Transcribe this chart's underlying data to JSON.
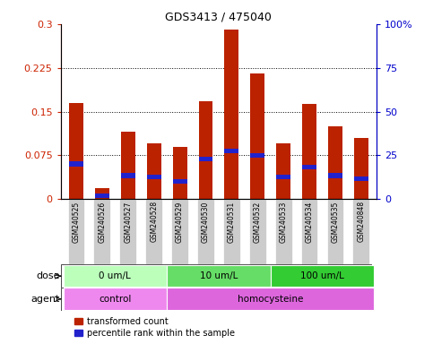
{
  "title": "GDS3413 / 475040",
  "samples": [
    "GSM240525",
    "GSM240526",
    "GSM240527",
    "GSM240528",
    "GSM240529",
    "GSM240530",
    "GSM240531",
    "GSM240532",
    "GSM240533",
    "GSM240534",
    "GSM240535",
    "GSM240848"
  ],
  "red_values": [
    0.165,
    0.018,
    0.115,
    0.095,
    0.09,
    0.168,
    0.29,
    0.215,
    0.095,
    0.163,
    0.125,
    0.105
  ],
  "blue_values": [
    0.06,
    0.005,
    0.04,
    0.038,
    0.03,
    0.068,
    0.082,
    0.075,
    0.038,
    0.055,
    0.04,
    0.035
  ],
  "ylim_left": [
    0,
    0.3
  ],
  "ylim_right": [
    0,
    100
  ],
  "yticks_left": [
    0,
    0.075,
    0.15,
    0.225,
    0.3
  ],
  "yticks_right": [
    0,
    25,
    50,
    75,
    100
  ],
  "dose_groups": [
    {
      "label": "0 um/L",
      "start": 0,
      "end": 4,
      "color": "#bbffbb"
    },
    {
      "label": "10 um/L",
      "start": 4,
      "end": 8,
      "color": "#66dd66"
    },
    {
      "label": "100 um/L",
      "start": 8,
      "end": 12,
      "color": "#33cc33"
    }
  ],
  "agent_groups": [
    {
      "label": "control",
      "start": 0,
      "end": 4,
      "color": "#ee88ee"
    },
    {
      "label": "homocysteine",
      "start": 4,
      "end": 12,
      "color": "#dd66dd"
    }
  ],
  "bar_color": "#bb2200",
  "blue_color": "#2222cc",
  "tick_label_color_left": "#cc2200",
  "tick_label_color_right": "#0000cc",
  "bar_width": 0.55,
  "legend_labels": [
    "transformed count",
    "percentile rank within the sample"
  ],
  "dose_label": "dose",
  "agent_label": "agent",
  "sample_bg_color": "#cccccc"
}
